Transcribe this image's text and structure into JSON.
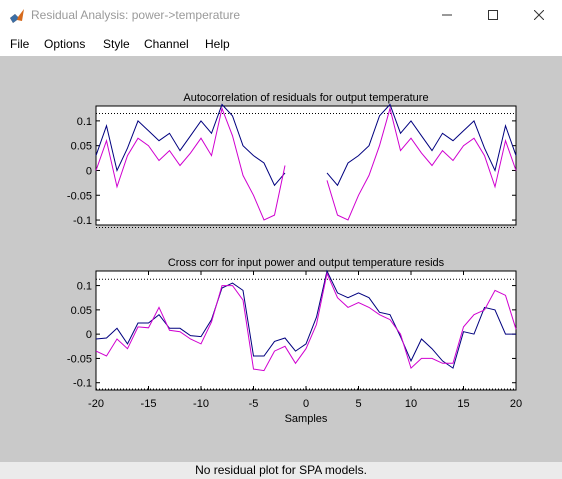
{
  "window": {
    "title": "Residual Analysis: power->temperature",
    "app_icon": "matlab-icon",
    "controls": [
      "minimize-icon",
      "maximize-icon",
      "close-icon"
    ]
  },
  "menu": {
    "items": [
      "File",
      "Options",
      "Style",
      "Channel",
      "Help"
    ]
  },
  "status_text": "No residual plot for SPA models.",
  "colors": {
    "figure_bg": "#c9c9c9",
    "series_1": "#00007f",
    "series_2": "#d000d0",
    "confidence": "#000000"
  },
  "chart_data": [
    {
      "type": "line",
      "title": "Autocorrelation of residuals for output temperature",
      "xlabel": "",
      "ylabel": "",
      "xlim": [
        -20,
        20
      ],
      "ylim": [
        -0.11,
        0.13
      ],
      "yticks": [
        -0.1,
        -0.05,
        0,
        0.05,
        0.1
      ],
      "ytick_labels": [
        "-0.1",
        "-0.05",
        "0",
        "0.05",
        "0.1"
      ],
      "xticks": [],
      "confidence_band": [
        -0.115,
        0.115
      ],
      "series": [
        {
          "color": "#00007f",
          "segments": [
            {
              "x": [
                -20,
                -19,
                -18,
                -17,
                -16,
                -15,
                -14,
                -13,
                -12,
                -11,
                -10,
                -9,
                -8,
                -7,
                -6,
                -5,
                -4,
                -3,
                -2
              ],
              "y": [
                0.03,
                0.09,
                0.0,
                0.045,
                0.1,
                0.08,
                0.06,
                0.075,
                0.04,
                0.07,
                0.1,
                0.075,
                0.133,
                0.11,
                0.05,
                0.03,
                0.015,
                -0.03,
                -0.005
              ]
            },
            {
              "x": [
                2,
                3,
                4,
                5,
                6,
                7,
                8,
                9,
                10,
                11,
                12,
                13,
                14,
                15,
                16,
                17,
                18,
                19,
                20
              ],
              "y": [
                -0.005,
                -0.03,
                0.015,
                0.03,
                0.05,
                0.11,
                0.133,
                0.075,
                0.1,
                0.07,
                0.04,
                0.075,
                0.06,
                0.08,
                0.1,
                0.045,
                0.0,
                0.09,
                0.03
              ]
            }
          ]
        },
        {
          "color": "#d000d0",
          "segments": [
            {
              "x": [
                -20,
                -19,
                -18,
                -17,
                -16,
                -15,
                -14,
                -13,
                -12,
                -11,
                -10,
                -9,
                -8,
                -7,
                -6,
                -5,
                -4,
                -3,
                -2
              ],
              "y": [
                0.0,
                0.06,
                -0.033,
                0.03,
                0.065,
                0.05,
                0.02,
                0.04,
                0.01,
                0.035,
                0.065,
                0.03,
                0.125,
                0.07,
                -0.01,
                -0.05,
                -0.1,
                -0.09,
                0.01
              ]
            },
            {
              "x": [
                2,
                3,
                4,
                5,
                6,
                7,
                8,
                9,
                10,
                11,
                12,
                13,
                14,
                15,
                16,
                17,
                18,
                19,
                20
              ],
              "y": [
                -0.02,
                -0.09,
                -0.1,
                -0.05,
                -0.01,
                0.05,
                0.125,
                0.04,
                0.065,
                0.035,
                0.01,
                0.04,
                0.02,
                0.05,
                0.065,
                0.03,
                -0.033,
                0.06,
                0.0
              ]
            }
          ]
        }
      ]
    },
    {
      "type": "line",
      "title": "Cross corr for input power and output temperature resids",
      "xlabel": "Samples",
      "ylabel": "",
      "xlim": [
        -20,
        20
      ],
      "ylim": [
        -0.115,
        0.13
      ],
      "yticks": [
        -0.1,
        -0.05,
        0,
        0.05,
        0.1
      ],
      "ytick_labels": [
        "-0.1",
        "-0.05",
        "0",
        "0.05",
        "0.1"
      ],
      "xticks": [
        -20,
        -15,
        -10,
        -5,
        0,
        5,
        10,
        15,
        20
      ],
      "xtick_labels": [
        "-20",
        "-15",
        "-10",
        "-5",
        "0",
        "5",
        "10",
        "15",
        "20"
      ],
      "confidence_band": [
        -0.113,
        0.113
      ],
      "series": [
        {
          "color": "#00007f",
          "segments": [
            {
              "x": [
                -20,
                -19,
                -18,
                -17,
                -16,
                -15,
                -14,
                -13,
                -12,
                -11,
                -10,
                -9,
                -8,
                -7,
                -6,
                -5,
                -4,
                -3,
                -2,
                -1,
                0,
                1,
                2,
                3,
                4,
                5,
                6,
                7,
                8,
                9,
                10,
                11,
                12,
                13,
                14,
                15,
                16,
                17,
                18,
                19,
                20
              ],
              "y": [
                -0.01,
                -0.008,
                0.012,
                -0.02,
                0.023,
                0.023,
                0.04,
                0.012,
                0.012,
                -0.003,
                -0.005,
                0.03,
                0.095,
                0.105,
                0.09,
                -0.045,
                -0.045,
                -0.015,
                -0.008,
                -0.035,
                -0.02,
                0.035,
                0.13,
                0.085,
                0.075,
                0.085,
                0.075,
                0.045,
                0.04,
                -0.005,
                -0.055,
                -0.01,
                -0.03,
                -0.055,
                -0.07,
                0.005,
                0.0,
                0.055,
                0.05,
                0.0,
                0.0
              ]
            }
          ]
        },
        {
          "color": "#d000d0",
          "segments": [
            {
              "x": [
                -20,
                -19,
                -18,
                -17,
                -16,
                -15,
                -14,
                -13,
                -12,
                -11,
                -10,
                -9,
                -8,
                -7,
                -6,
                -5,
                -4,
                -3,
                -2,
                -1,
                0,
                1,
                2,
                3,
                4,
                5,
                6,
                7,
                8,
                9,
                10,
                11,
                12,
                13,
                14,
                15,
                16,
                17,
                18,
                19,
                20
              ],
              "y": [
                -0.035,
                -0.045,
                -0.01,
                -0.03,
                0.015,
                0.013,
                0.055,
                0.008,
                0.005,
                -0.01,
                -0.02,
                0.025,
                0.1,
                0.1,
                0.07,
                -0.072,
                -0.075,
                -0.035,
                -0.025,
                -0.06,
                -0.03,
                0.02,
                0.125,
                0.075,
                0.055,
                0.065,
                0.055,
                0.04,
                0.03,
                0.0,
                -0.07,
                -0.05,
                -0.05,
                -0.06,
                -0.06,
                0.015,
                0.04,
                0.05,
                0.09,
                0.08,
                0.01
              ]
            }
          ]
        }
      ]
    }
  ]
}
